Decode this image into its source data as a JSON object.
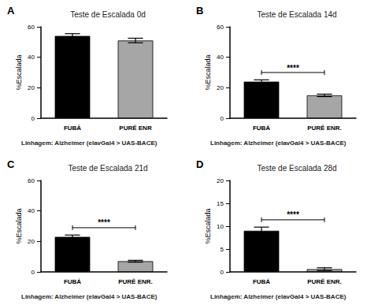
{
  "chart_data": [
    {
      "type": "bar",
      "panel_label": "A",
      "title": "Teste de Escalada 0d",
      "ylabel": "%Escalada",
      "xlabel": "Linhagem: Alzheimer (elavGal4 > UAS-BACE)",
      "categories": [
        "FUBÁ",
        "PURÊ ENR"
      ],
      "values": [
        54,
        51
      ],
      "errors": [
        1.5,
        1.5
      ],
      "colors": [
        "#000000",
        "#a6a6a6"
      ],
      "ylim": [
        0,
        60
      ],
      "yticks": [
        0,
        20,
        40,
        60
      ],
      "grid": false
    },
    {
      "type": "bar",
      "panel_label": "B",
      "title": "Teste de Escalada 14d",
      "ylabel": "%Escalada",
      "xlabel": "Linhagem: Alzheimer (elavGal4 > UAS-BACE)",
      "categories": [
        "FUBÁ",
        "PURÊ ENR."
      ],
      "values": [
        24,
        15
      ],
      "errors": [
        1.2,
        0.8
      ],
      "colors": [
        "#000000",
        "#a6a6a6"
      ],
      "ylim": [
        0,
        60
      ],
      "yticks": [
        0,
        20,
        40,
        60
      ],
      "grid": false,
      "significance": "****"
    },
    {
      "type": "bar",
      "panel_label": "C",
      "title": "Teste de Escalada 21d",
      "ylabel": "%Escalada",
      "xlabel": "Linhagem: Alzheimer (elavGal4 > UAS-BACE)",
      "categories": [
        "FUBÁ",
        "PURÊ ENR."
      ],
      "values": [
        23,
        7
      ],
      "errors": [
        1.2,
        0.6
      ],
      "colors": [
        "#000000",
        "#a6a6a6"
      ],
      "ylim": [
        0,
        60
      ],
      "yticks": [
        0,
        20,
        40,
        60
      ],
      "grid": false,
      "significance": "****"
    },
    {
      "type": "bar",
      "panel_label": "D",
      "title": "Teste de Escalada 28d",
      "ylabel": "%Escalada",
      "xlabel": "Linhagem: Alzheimer (elavGal4 > UAS-BACE)",
      "categories": [
        "FUBÁ",
        "PURÊ ENR."
      ],
      "values": [
        9,
        0.6
      ],
      "errors": [
        0.8,
        0.3
      ],
      "colors": [
        "#000000",
        "#a6a6a6"
      ],
      "ylim": [
        0,
        20
      ],
      "yticks": [
        0,
        5,
        10,
        15,
        20
      ],
      "grid": false,
      "significance": "****"
    }
  ]
}
